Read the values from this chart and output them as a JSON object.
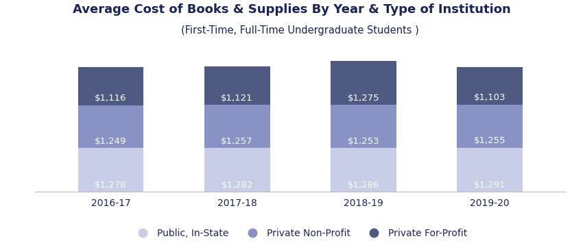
{
  "title": "Average Cost of Books & Supplies By Year & Type of Institution",
  "subtitle": "(First-Time, Full-Time Undergraduate Students )",
  "years": [
    "2016-17",
    "2017-18",
    "2018-19",
    "2019-20"
  ],
  "public_instate": [
    1278,
    1282,
    1286,
    1291
  ],
  "private_nonprofit": [
    1249,
    1257,
    1253,
    1255
  ],
  "private_forprofit": [
    1116,
    1121,
    1275,
    1103
  ],
  "colors": {
    "public_instate": "#c8cde8",
    "private_nonprofit": "#8892c4",
    "private_forprofit": "#4e5a82"
  },
  "legend_labels": [
    "Public, In-State",
    "Private Non-Profit",
    "Private For-Profit"
  ],
  "title_color": "#1a2456",
  "label_color": "#ffffff",
  "title_fontsize": 13,
  "subtitle_fontsize": 10.5,
  "bar_width": 0.52,
  "figsize": [
    8.5,
    3.55
  ],
  "dpi": 100,
  "ylim_max": 4500
}
